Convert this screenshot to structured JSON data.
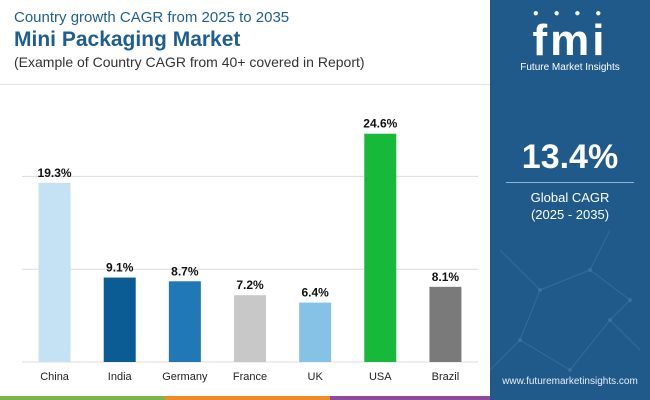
{
  "header": {
    "pre_title": "Country growth CAGR from 2025 to 2035",
    "title": "Mini Packaging Market",
    "subtitle": "(Example of Country CAGR from 40+ covered in Report)"
  },
  "chart_data": {
    "type": "bar",
    "categories": [
      "China",
      "India",
      "Germany",
      "France",
      "UK",
      "USA",
      "Brazil"
    ],
    "values": [
      19.3,
      9.1,
      8.7,
      7.2,
      6.4,
      24.6,
      8.1
    ],
    "value_labels": [
      "19.3%",
      "9.1%",
      "8.7%",
      "7.2%",
      "6.4%",
      "24.6%",
      "8.1%"
    ],
    "colors": [
      "#c5e2f5",
      "#0b5c94",
      "#2178b6",
      "#c8c8c8",
      "#86c1e6",
      "#16b93a",
      "#7a7a7a"
    ],
    "ylim": [
      0,
      25
    ],
    "grid": true
  },
  "panel": {
    "logo_text": "fmi",
    "logo_tagline": "Future Market Insights",
    "global_cagr": "13.4%",
    "cagr_label": "Global CAGR",
    "cagr_period": "(2025 - 2035)",
    "website": "www.futuremarketinsights.com"
  },
  "colors": {
    "panel_bg": "#1f5a8b",
    "title": "#1f5f8f",
    "footer_green": "#7ab648",
    "footer_orange": "#f08a24",
    "footer_purple": "#8c4a9e"
  }
}
